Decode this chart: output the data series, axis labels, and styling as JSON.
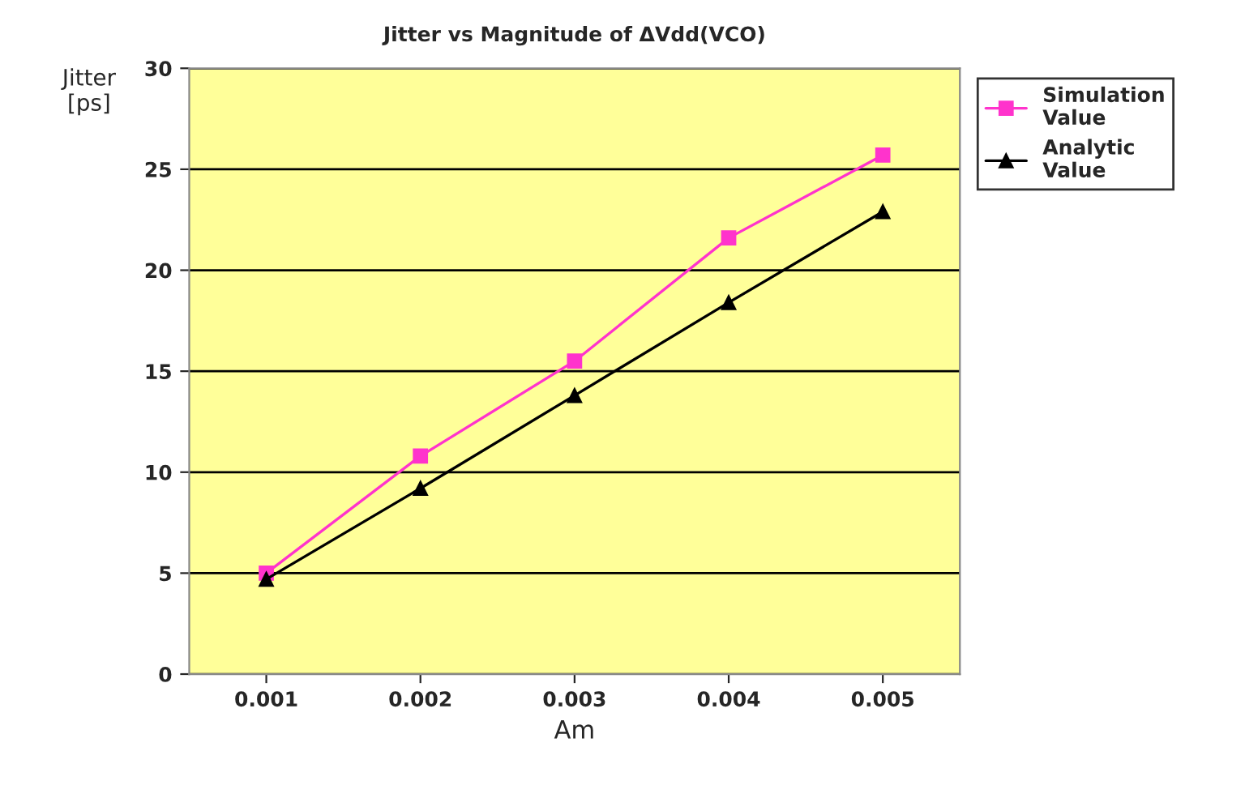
{
  "chart_data": {
    "type": "line",
    "title": "Jitter vs Magnitude of ΔVdd(VCO)",
    "xlabel": "Am",
    "ylabel": "Jitter\n[ps]",
    "categories": [
      "0.001",
      "0.002",
      "0.003",
      "0.004",
      "0.005"
    ],
    "series": [
      {
        "name": "Simulation\nValue",
        "color": "#ff33cc",
        "marker": "square",
        "values": [
          5.0,
          10.8,
          15.5,
          21.6,
          25.7
        ]
      },
      {
        "name": "Analytic\nValue",
        "color": "#000000",
        "marker": "triangle",
        "values": [
          4.7,
          9.2,
          13.8,
          18.4,
          22.9
        ]
      }
    ],
    "ylim": [
      0,
      30
    ],
    "yticks": [
      0,
      5,
      10,
      15,
      20,
      25,
      30
    ],
    "grid": "y",
    "legend": "top right",
    "line_style": "solid"
  }
}
